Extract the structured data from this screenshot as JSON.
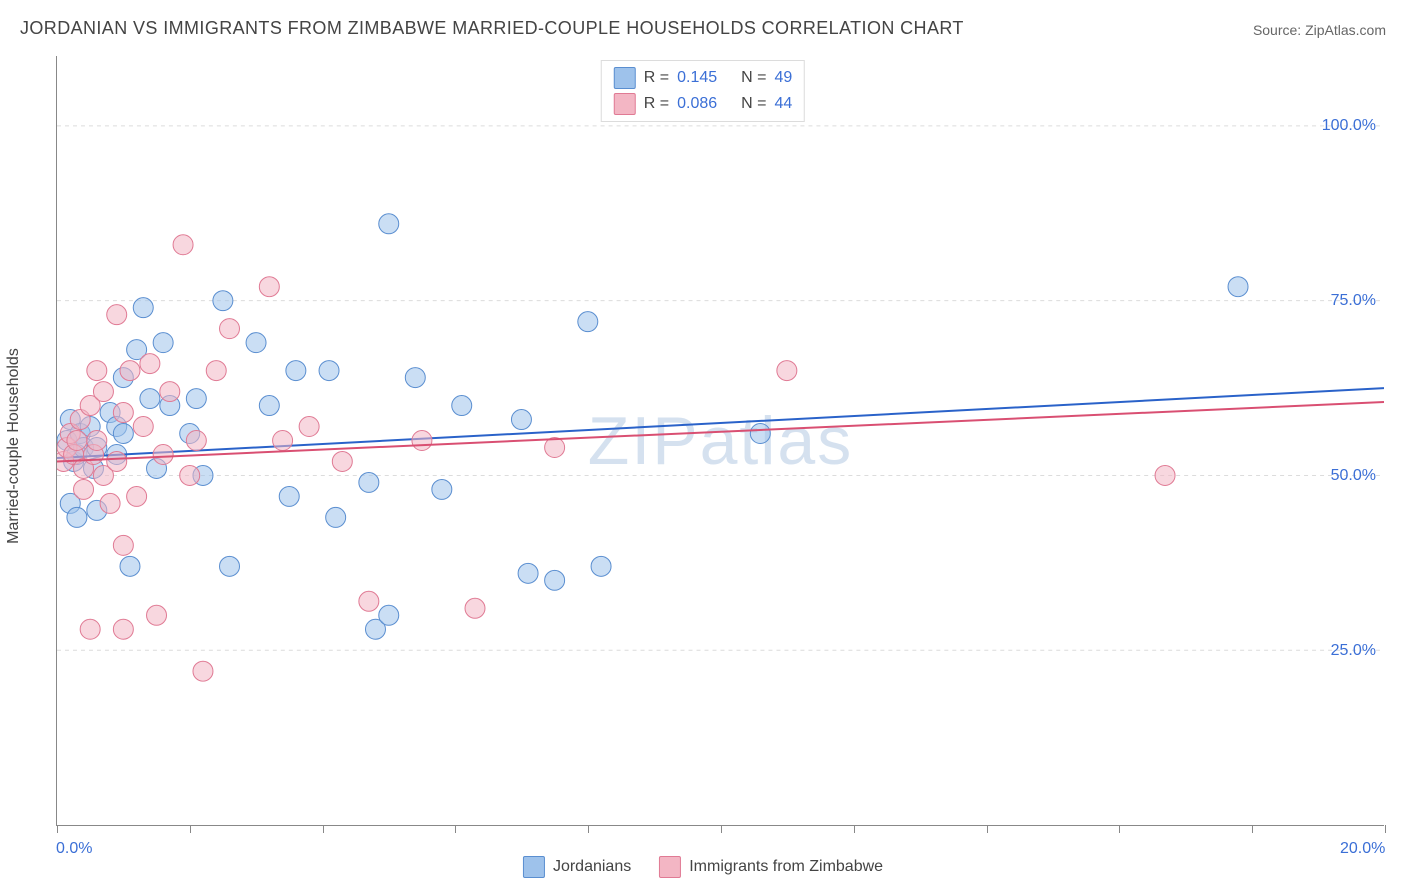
{
  "title": "JORDANIAN VS IMMIGRANTS FROM ZIMBABWE MARRIED-COUPLE HOUSEHOLDS CORRELATION CHART",
  "source": "Source: ZipAtlas.com",
  "yaxis_title": "Married-couple Households",
  "watermark": "ZIPatlas",
  "chart": {
    "type": "scatter",
    "xlim": [
      0,
      20
    ],
    "ylim": [
      0,
      110
    ],
    "x_ticks": [
      0,
      2,
      4,
      6,
      8,
      10,
      12,
      14,
      16,
      18,
      20
    ],
    "x_labels": {
      "0": "0.0%",
      "20": "20.0%"
    },
    "y_gridlines": [
      25,
      50,
      75,
      100
    ],
    "y_labels": {
      "25": "25.0%",
      "50": "50.0%",
      "75": "75.0%",
      "100": "100.0%"
    },
    "background_color": "#ffffff",
    "grid_color": "#dcdcdc",
    "axis_color": "#888888",
    "tick_label_color": "#3b6fd6",
    "marker_radius": 10,
    "marker_opacity": 0.55,
    "series": [
      {
        "name": "Jordanians",
        "color_fill": "#9ec2eb",
        "color_stroke": "#5a8ed0",
        "r": 0.145,
        "n": 49,
        "trend": {
          "y_at_xmin": 52.5,
          "y_at_xmax": 62.5,
          "stroke": "#2a62c9",
          "width": 2
        },
        "points": [
          [
            0.15,
            55
          ],
          [
            0.2,
            58
          ],
          [
            0.25,
            52
          ],
          [
            0.3,
            53
          ],
          [
            0.35,
            56
          ],
          [
            0.4,
            54
          ],
          [
            0.5,
            57
          ],
          [
            0.55,
            51
          ],
          [
            0.6,
            54
          ],
          [
            0.6,
            45
          ],
          [
            0.8,
            59
          ],
          [
            0.9,
            57
          ],
          [
            0.9,
            53
          ],
          [
            1.0,
            64
          ],
          [
            1.0,
            56
          ],
          [
            1.1,
            37
          ],
          [
            1.2,
            68
          ],
          [
            1.3,
            74
          ],
          [
            1.4,
            61
          ],
          [
            1.5,
            51
          ],
          [
            1.6,
            69
          ],
          [
            1.7,
            60
          ],
          [
            2.0,
            56
          ],
          [
            2.1,
            61
          ],
          [
            2.2,
            50
          ],
          [
            2.5,
            75
          ],
          [
            2.6,
            37
          ],
          [
            3.0,
            69
          ],
          [
            3.2,
            60
          ],
          [
            3.5,
            47
          ],
          [
            3.6,
            65
          ],
          [
            4.1,
            65
          ],
          [
            4.2,
            44
          ],
          [
            4.7,
            49
          ],
          [
            4.8,
            28
          ],
          [
            5.0,
            30
          ],
          [
            5.0,
            86
          ],
          [
            5.4,
            64
          ],
          [
            5.8,
            48
          ],
          [
            6.1,
            60
          ],
          [
            7.0,
            58
          ],
          [
            7.1,
            36
          ],
          [
            7.5,
            35
          ],
          [
            8.0,
            72
          ],
          [
            8.2,
            37
          ],
          [
            10.6,
            56
          ],
          [
            17.8,
            77
          ],
          [
            0.2,
            46
          ],
          [
            0.3,
            44
          ]
        ]
      },
      {
        "name": "Immigrants from Zimbabwe",
        "color_fill": "#f3b6c4",
        "color_stroke": "#e07a94",
        "r": 0.086,
        "n": 44,
        "trend": {
          "y_at_xmin": 52.0,
          "y_at_xmax": 60.5,
          "stroke": "#d94f72",
          "width": 2
        },
        "points": [
          [
            0.1,
            52
          ],
          [
            0.15,
            54
          ],
          [
            0.2,
            56
          ],
          [
            0.25,
            53
          ],
          [
            0.3,
            55
          ],
          [
            0.35,
            58
          ],
          [
            0.4,
            51
          ],
          [
            0.4,
            48
          ],
          [
            0.5,
            60
          ],
          [
            0.55,
            53
          ],
          [
            0.6,
            55
          ],
          [
            0.6,
            65
          ],
          [
            0.7,
            50
          ],
          [
            0.7,
            62
          ],
          [
            0.8,
            46
          ],
          [
            0.9,
            73
          ],
          [
            0.9,
            52
          ],
          [
            1.0,
            59
          ],
          [
            1.0,
            40
          ],
          [
            1.1,
            65
          ],
          [
            1.2,
            47
          ],
          [
            1.3,
            57
          ],
          [
            1.4,
            66
          ],
          [
            1.5,
            30
          ],
          [
            1.6,
            53
          ],
          [
            1.7,
            62
          ],
          [
            1.9,
            83
          ],
          [
            2.0,
            50
          ],
          [
            2.1,
            55
          ],
          [
            2.2,
            22
          ],
          [
            2.4,
            65
          ],
          [
            2.6,
            71
          ],
          [
            3.2,
            77
          ],
          [
            3.4,
            55
          ],
          [
            3.8,
            57
          ],
          [
            4.3,
            52
          ],
          [
            4.7,
            32
          ],
          [
            5.5,
            55
          ],
          [
            6.3,
            31
          ],
          [
            7.5,
            54
          ],
          [
            11.0,
            65
          ],
          [
            16.7,
            50
          ],
          [
            0.5,
            28
          ],
          [
            1.0,
            28
          ]
        ]
      }
    ]
  },
  "legend_bottom": {
    "items": [
      {
        "label": "Jordanians",
        "fill": "#9ec2eb",
        "stroke": "#5a8ed0"
      },
      {
        "label": "Immigrants from Zimbabwe",
        "fill": "#f3b6c4",
        "stroke": "#e07a94"
      }
    ]
  }
}
